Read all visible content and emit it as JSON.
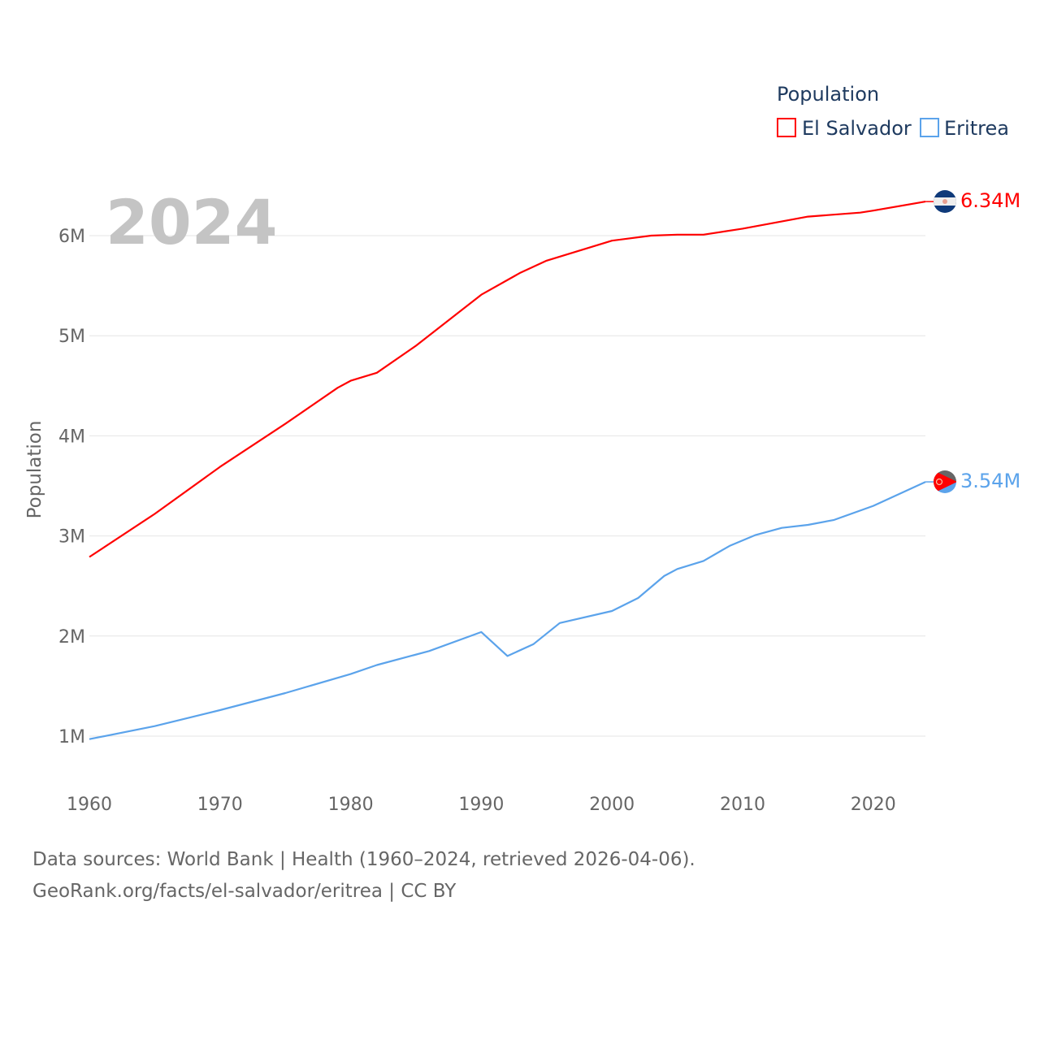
{
  "chart_data": {
    "type": "line",
    "title": "Population",
    "year_label": "2024",
    "ylabel": "Population",
    "xlabel": "",
    "xlim": [
      1960,
      2024
    ],
    "ylim": [
      700000,
      6600000
    ],
    "grid": true,
    "legend_position": "top-right",
    "x_ticks": [
      1960,
      1970,
      1980,
      1990,
      2000,
      2010,
      2020
    ],
    "x_tick_labels": [
      "1960",
      "1970",
      "1980",
      "1990",
      "2000",
      "2010",
      "2020"
    ],
    "y_ticks": [
      1000000,
      2000000,
      3000000,
      4000000,
      5000000,
      6000000
    ],
    "y_tick_labels": [
      "1M",
      "2M",
      "3M",
      "4M",
      "5M",
      "6M"
    ],
    "series": [
      {
        "name": "El Salvador",
        "color": "#ff0000",
        "end_label": "6.34M",
        "points": [
          [
            1960,
            2.79
          ],
          [
            1965,
            3.22
          ],
          [
            1970,
            3.69
          ],
          [
            1975,
            4.12
          ],
          [
            1979,
            4.48
          ],
          [
            1980,
            4.55
          ],
          [
            1982,
            4.63
          ],
          [
            1985,
            4.9
          ],
          [
            1990,
            5.41
          ],
          [
            1993,
            5.63
          ],
          [
            1995,
            5.75
          ],
          [
            2000,
            5.95
          ],
          [
            2003,
            6.0
          ],
          [
            2005,
            6.01
          ],
          [
            2007,
            6.01
          ],
          [
            2010,
            6.07
          ],
          [
            2015,
            6.19
          ],
          [
            2019,
            6.23
          ],
          [
            2020,
            6.25
          ],
          [
            2024,
            6.34
          ]
        ]
      },
      {
        "name": "Eritrea",
        "color": "#5ba3eb",
        "end_label": "3.54M",
        "points": [
          [
            1960,
            0.97
          ],
          [
            1965,
            1.1
          ],
          [
            1970,
            1.26
          ],
          [
            1975,
            1.43
          ],
          [
            1980,
            1.62
          ],
          [
            1982,
            1.71
          ],
          [
            1986,
            1.85
          ],
          [
            1990,
            2.04
          ],
          [
            1992,
            1.8
          ],
          [
            1994,
            1.92
          ],
          [
            1996,
            2.13
          ],
          [
            2000,
            2.25
          ],
          [
            2002,
            2.38
          ],
          [
            2004,
            2.6
          ],
          [
            2005,
            2.67
          ],
          [
            2007,
            2.75
          ],
          [
            2009,
            2.9
          ],
          [
            2011,
            3.01
          ],
          [
            2013,
            3.08
          ],
          [
            2015,
            3.11
          ],
          [
            2017,
            3.16
          ],
          [
            2020,
            3.3
          ],
          [
            2024,
            3.54
          ]
        ]
      }
    ]
  },
  "footer": {
    "line1": "Data sources: World Bank | Health (1960–2024, retrieved 2026-04-06).",
    "line2": "GeoRank.org/facts/el-salvador/eritrea | CC BY"
  }
}
